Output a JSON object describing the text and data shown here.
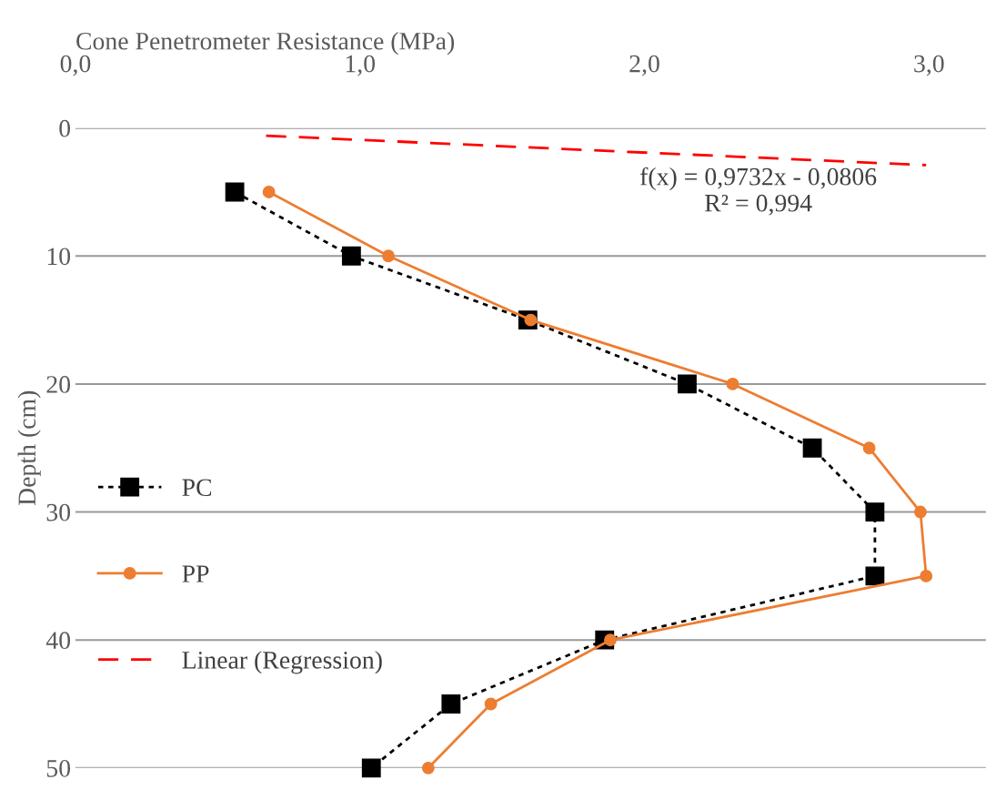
{
  "chart_data": {
    "type": "line",
    "orientation": "horizontal",
    "xlabel": "Cone Penetrometer Resistance (MPa)",
    "ylabel": "Depth (cm)",
    "series": [
      {
        "name": "PC",
        "color": "#000000",
        "marker": "square",
        "line_style": "dotted",
        "x": [
          5,
          10,
          15,
          20,
          25,
          30,
          35,
          40,
          45,
          50
        ],
        "values": [
          0.56,
          0.97,
          1.59,
          2.15,
          2.59,
          2.81,
          2.81,
          1.86,
          1.32,
          1.04
        ]
      },
      {
        "name": "PP",
        "color": "#ed7d31",
        "marker": "circle",
        "line_style": "solid",
        "x": [
          5,
          10,
          15,
          20,
          25,
          30,
          35,
          40,
          45,
          50
        ],
        "values": [
          0.68,
          1.1,
          1.6,
          2.31,
          2.79,
          2.97,
          2.99,
          1.88,
          1.46,
          1.24
        ]
      },
      {
        "name": "Linear (Regression)",
        "color": "#ff0000",
        "marker": "none",
        "line_style": "dashed",
        "x": [
          0.6,
          2.9
        ],
        "values": [
          0.67,
          2.99
        ]
      }
    ],
    "annotations": [
      "f(x) = 0,9732x - 0,0806\nR² = 0,994"
    ],
    "xlim": [
      0,
      3.2
    ],
    "xticks": [
      {
        "value": 0,
        "label": "0,0"
      },
      {
        "value": 1,
        "label": "1,0"
      },
      {
        "value": 2,
        "label": "2,0"
      },
      {
        "value": 3,
        "label": "3,0"
      }
    ],
    "ylim": [
      50,
      0
    ],
    "yticks": [
      0,
      10,
      20,
      30,
      40,
      50
    ],
    "grid": "y",
    "legend": "left"
  }
}
